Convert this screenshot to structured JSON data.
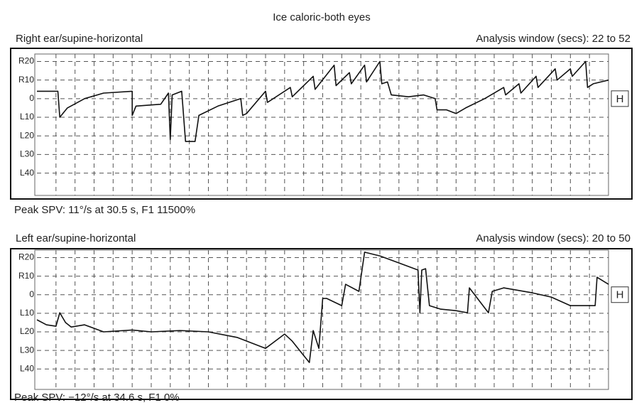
{
  "title": "Ice caloric-both eyes",
  "chart_data": [
    {
      "type": "line",
      "panel_title": "Right ear/supine-horizontal",
      "window_label": "Analysis window (secs): 22 to 52",
      "peak_label": "Peak SPV: 11°/s at 30.5 s, F1 11500%",
      "marker": "H",
      "color": "#111111",
      "grid": true,
      "xlim": [
        0,
        30
      ],
      "ylim": [
        -52,
        24
      ],
      "yticks": [
        {
          "value": 20,
          "label": "R20"
        },
        {
          "value": 10,
          "label": "R10"
        },
        0,
        {
          "value": -10,
          "label": "L10"
        },
        {
          "value": -20,
          "label": "L20"
        },
        {
          "value": -30,
          "label": "L30"
        },
        {
          "value": -40,
          "label": "L40"
        }
      ],
      "x": [
        0,
        1.1,
        1.2,
        1.6,
        2.5,
        3.5,
        5.0,
        5.0,
        5.2,
        6.5,
        6.9,
        7.0,
        7.1,
        7.6,
        7.8,
        8.3,
        8.5,
        9.5,
        10.7,
        10.8,
        11.0,
        12.0,
        12.1,
        13.3,
        13.4,
        14.5,
        14.6,
        15.6,
        15.7,
        16.4,
        16.5,
        17.2,
        17.3,
        18.0,
        18.1,
        18.4,
        18.6,
        19.5,
        20.3,
        20.9,
        21.0,
        21.5,
        22.0,
        22.5,
        23.5,
        24.5,
        24.6,
        25.3,
        25.4,
        26.2,
        26.3,
        27.2,
        27.3,
        28.0,
        28.1,
        28.8,
        28.9,
        29.2,
        30
      ],
      "values": [
        4,
        4,
        -10,
        -5,
        0,
        3,
        4,
        -9,
        -4,
        -3,
        3,
        -22,
        2,
        4,
        -23,
        -23,
        -9,
        -4,
        0,
        -9,
        -8,
        4,
        -2,
        6,
        1,
        12,
        5,
        18,
        7,
        14,
        8,
        18,
        9,
        20,
        8,
        9,
        2,
        1,
        2,
        0,
        -6,
        -6,
        -8,
        -5,
        0,
        6,
        2,
        8,
        3,
        12,
        6,
        16,
        10,
        16,
        12,
        20,
        6,
        8,
        10
      ]
    },
    {
      "type": "line",
      "panel_title": "Left ear/supine-horizontal",
      "window_label": "Analysis window (secs): 20 to 50",
      "peak_label": "Peak SPV: −12°/s at 34.6 s, F1 0%",
      "marker": "H",
      "color": "#111111",
      "grid": true,
      "xlim": [
        0,
        30
      ],
      "ylim": [
        -51,
        24
      ],
      "yticks": [
        {
          "value": 20,
          "label": "R20"
        },
        {
          "value": 10,
          "label": "R10"
        },
        0,
        {
          "value": -10,
          "label": "L10"
        },
        {
          "value": -20,
          "label": "L20"
        },
        {
          "value": -30,
          "label": "L30"
        },
        {
          "value": -40,
          "label": "L40"
        }
      ],
      "x": [
        0,
        0.5,
        1.0,
        1.2,
        1.5,
        1.8,
        2.5,
        3.5,
        5.0,
        6.0,
        7.5,
        9.0,
        10.5,
        12.0,
        13.0,
        13.4,
        14.0,
        14.3,
        14.5,
        14.8,
        15.0,
        15.2,
        16.0,
        16.2,
        16.9,
        17.2,
        18.0,
        19.0,
        20.0,
        20.1,
        20.2,
        20.4,
        20.6,
        21.2,
        22.0,
        22.6,
        22.7,
        23.7,
        23.9,
        24.5,
        26.0,
        27.0,
        28.0,
        29.3,
        29.4,
        30
      ],
      "values": [
        -13.5,
        -16.2,
        -17,
        -9.7,
        -15,
        -17.4,
        -16.2,
        -20,
        -19,
        -20,
        -19.3,
        -20,
        -23,
        -28.9,
        -21.2,
        -25,
        -32.7,
        -36.5,
        -19.3,
        -28.9,
        -2,
        -2,
        -5.9,
        5.6,
        1.8,
        22.9,
        20.9,
        17.1,
        13.3,
        -9.7,
        13.3,
        14,
        -5.9,
        -7.8,
        -8.6,
        -9.7,
        3.7,
        -9.7,
        1.8,
        3.7,
        1,
        -1.3,
        -5.9,
        -5.9,
        9.4,
        5.6
      ]
    }
  ]
}
